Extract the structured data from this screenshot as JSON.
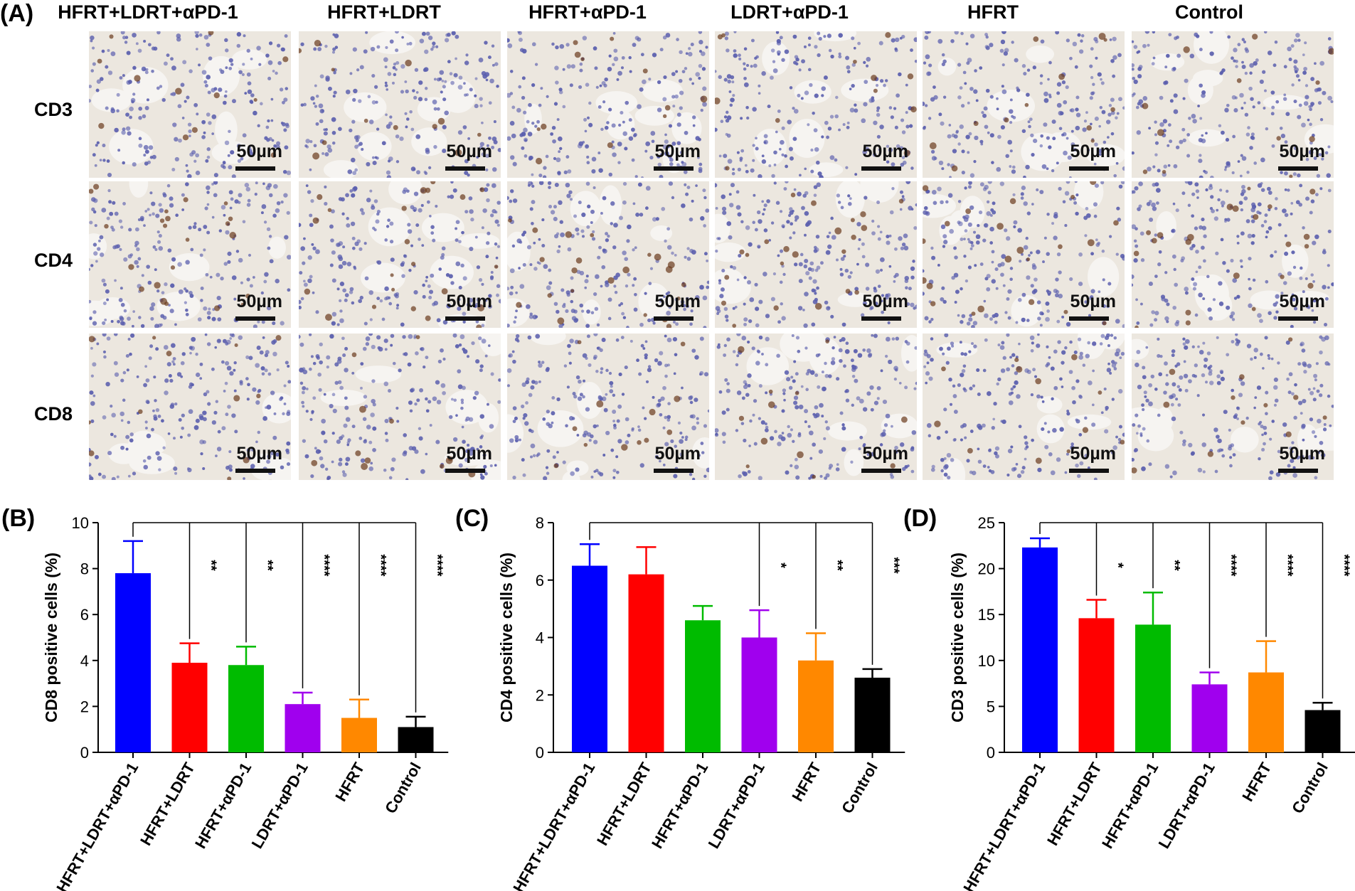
{
  "panel_a": {
    "label": "(A)",
    "columns": [
      "HFRT+LDRT+αPD-1",
      "HFRT+LDRT",
      "HFRT+αPD-1",
      "LDRT+αPD-1",
      "HFRT",
      "Control"
    ],
    "rows": [
      "CD3",
      "CD4",
      "CD8"
    ],
    "scale_label": "50µm"
  },
  "chart_data": [
    {
      "type": "bar",
      "panel": "(B)",
      "title": "",
      "xlabel": "",
      "ylabel": "CD8 positive cells (%)",
      "ylim": [
        0,
        10
      ],
      "yticks": [
        0,
        2,
        4,
        6,
        8,
        10
      ],
      "categories": [
        "HFRT+LDRT+αPD-1",
        "HFRT+LDRT",
        "HFRT+αPD-1",
        "LDRT+αPD-1",
        "HFRT",
        "Control"
      ],
      "values": [
        7.8,
        3.9,
        3.8,
        2.1,
        1.5,
        1.1
      ],
      "errors": [
        1.4,
        0.85,
        0.8,
        0.5,
        0.8,
        0.45
      ],
      "significance": [
        "",
        "**",
        "**",
        "****",
        "****",
        "****"
      ]
    },
    {
      "type": "bar",
      "panel": "(C)",
      "title": "",
      "xlabel": "",
      "ylabel": "CD4 positive cells (%)",
      "ylim": [
        0,
        8
      ],
      "yticks": [
        0,
        2,
        4,
        6,
        8
      ],
      "categories": [
        "HFRT+LDRT+αPD-1",
        "HFRT+LDRT",
        "HFRT+αPD-1",
        "LDRT+αPD-1",
        "HFRT",
        "Control"
      ],
      "values": [
        6.5,
        6.2,
        4.6,
        4.0,
        3.2,
        2.6
      ],
      "errors": [
        0.75,
        0.95,
        0.5,
        0.95,
        0.95,
        0.3
      ],
      "significance": [
        "",
        "",
        "",
        "*",
        "**",
        "***"
      ]
    },
    {
      "type": "bar",
      "panel": "(D)",
      "title": "",
      "xlabel": "",
      "ylabel": "CD3 positive cells (%)",
      "ylim": [
        0,
        25
      ],
      "yticks": [
        0,
        5,
        10,
        15,
        20,
        25
      ],
      "categories": [
        "HFRT+LDRT+αPD-1",
        "HFRT+LDRT",
        "HFRT+αPD-1",
        "LDRT+αPD-1",
        "HFRT",
        "Control"
      ],
      "values": [
        22.3,
        14.6,
        13.9,
        7.4,
        8.7,
        4.6
      ],
      "errors": [
        1.0,
        2.0,
        3.5,
        1.3,
        3.4,
        0.8
      ],
      "significance": [
        "",
        "*",
        "**",
        "****",
        "****",
        "****"
      ]
    }
  ],
  "colors": {
    "bars": [
      "#0000ff",
      "#ff0000",
      "#00bb00",
      "#a000ee",
      "#ff8800",
      "#000000"
    ],
    "micro_background": "#ece7df",
    "nuclei": "#5b5fae",
    "stained": "#6b3a1c"
  }
}
